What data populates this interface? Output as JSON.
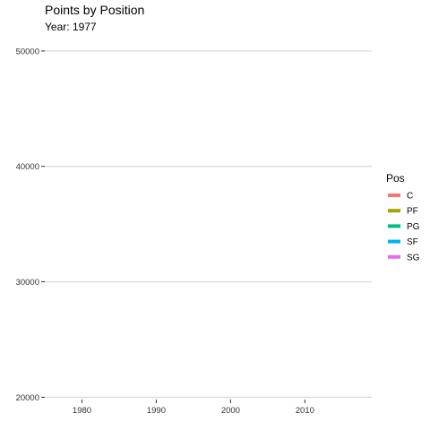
{
  "chart_data": {
    "type": "line",
    "title": "Points by Position",
    "subtitle": "Year: 1977",
    "xlabel": "",
    "ylabel": "",
    "x_ticks": [
      1980,
      1990,
      2000,
      2010
    ],
    "y_ticks": [
      20000,
      30000,
      40000,
      50000
    ],
    "y_tick_labels": [
      "20000",
      "30000",
      "40000",
      "50000"
    ],
    "x_tick_labels": [
      "1980",
      "1990",
      "2000",
      "2010"
    ],
    "xlim": [
      1975,
      2019
    ],
    "ylim": [
      19800,
      51000
    ],
    "grid": "horizontal-major",
    "legend": {
      "title": "Pos",
      "placement": "right",
      "entries": [
        {
          "label": "C",
          "color": "#F8766D"
        },
        {
          "label": "PF",
          "color": "#A3A500"
        },
        {
          "label": "PG",
          "color": "#00BF7D"
        },
        {
          "label": "SF",
          "color": "#00B0F6"
        },
        {
          "label": "SG",
          "color": "#E76BF3"
        }
      ]
    },
    "series": [
      {
        "name": "C",
        "color": "#F8766D",
        "x": [],
        "y": []
      },
      {
        "name": "PF",
        "color": "#A3A500",
        "x": [],
        "y": []
      },
      {
        "name": "PG",
        "color": "#00BF7D",
        "x": [],
        "y": []
      },
      {
        "name": "SF",
        "color": "#00B0F6",
        "x": [],
        "y": []
      },
      {
        "name": "SG",
        "color": "#E76BF3",
        "x": [],
        "y": []
      }
    ]
  }
}
